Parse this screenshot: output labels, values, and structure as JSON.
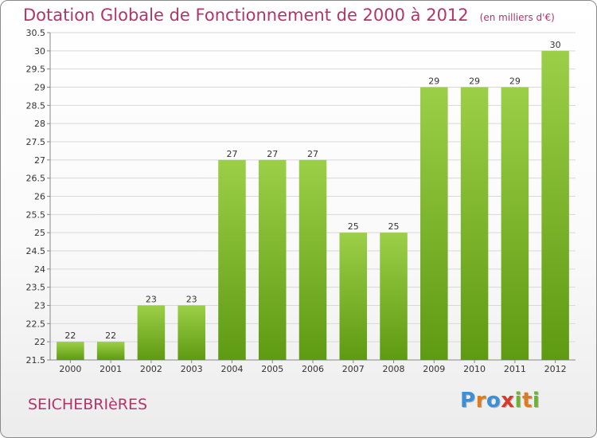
{
  "title": "Dotation Globale de Fonctionnement de 2000 à 2012",
  "unit_note": "(en milliers d'€)",
  "commune": "SEICHEBRIèRES",
  "logo": {
    "letters": [
      "P",
      "r",
      "o",
      "x",
      "i",
      "t",
      "i"
    ],
    "colors": [
      "#3b8fd6",
      "#e07a1a",
      "#3b8fd6",
      "#d23c2c",
      "#6ab42f",
      "#e07a1a",
      "#6ab42f"
    ]
  },
  "colors": {
    "bar_light": "#9ccf48",
    "bar_dark": "#5e9a12",
    "title": "#b0366a",
    "grid": "#d8d8d8"
  },
  "chart_data": {
    "type": "bar",
    "title": "Dotation Globale de Fonctionnement de 2000 à 2012",
    "xlabel": "",
    "ylabel": "",
    "categories": [
      "2000",
      "2001",
      "2002",
      "2003",
      "2004",
      "2005",
      "2006",
      "2007",
      "2008",
      "2009",
      "2010",
      "2011",
      "2012"
    ],
    "values": [
      22,
      22,
      23,
      23,
      27,
      27,
      27,
      25,
      25,
      29,
      29,
      29,
      30
    ],
    "ylim": [
      21.5,
      30.5
    ],
    "yticks": [
      "21.5",
      "22",
      "22.5",
      "23",
      "23.5",
      "24",
      "24.5",
      "25",
      "25.5",
      "26",
      "26.5",
      "27",
      "27.5",
      "28",
      "28.5",
      "29",
      "29.5",
      "30",
      "30.5"
    ],
    "grid": true,
    "data_labels": true
  }
}
